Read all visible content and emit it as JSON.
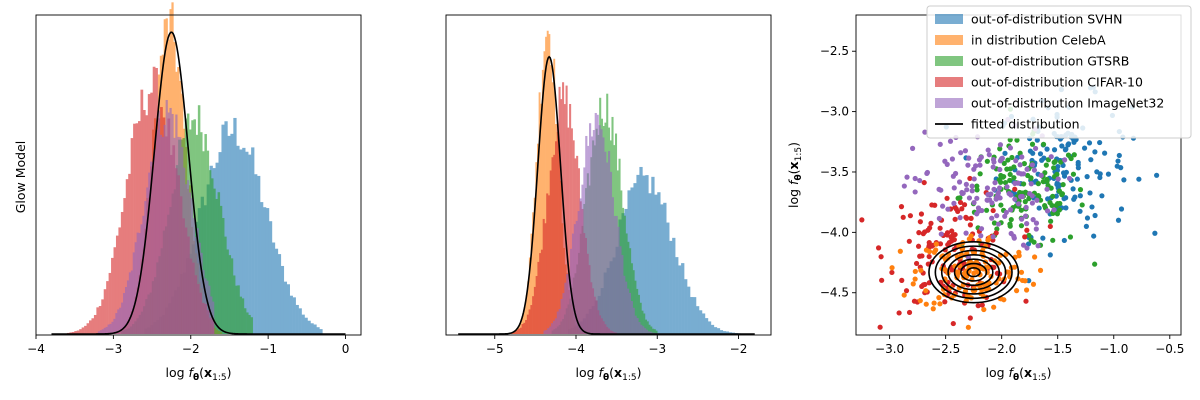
{
  "figure": {
    "row_label": "Glow Model"
  },
  "colors": {
    "svhn": "#1f77b4",
    "celeba": "#ff7f0e",
    "gtsrb": "#2ca02c",
    "cifar10": "#d62728",
    "imagenet32": "#9467bd",
    "fitted": "#000000"
  },
  "legend": [
    {
      "label": "out-of-distribution SVHN",
      "color_key": "svhn",
      "kind": "patch"
    },
    {
      "label": "in distribution CelebA",
      "color_key": "celeba",
      "kind": "patch"
    },
    {
      "label": "out-of-distribution GTSRB",
      "color_key": "gtsrb",
      "kind": "patch"
    },
    {
      "label": "out-of-distribution CIFAR-10",
      "color_key": "cifar10",
      "kind": "patch"
    },
    {
      "label": "out-of-distribution ImageNet32",
      "color_key": "imagenet32",
      "kind": "patch"
    },
    {
      "label": "fitted distribution",
      "color_key": "fitted",
      "kind": "line"
    }
  ],
  "chart_data": [
    {
      "type": "histogram",
      "xlabel": "log f_θ(x_{1:5})",
      "xlim": [
        -4.0,
        0.2
      ],
      "xticks": [
        "−4",
        "−3",
        "−2",
        "−1",
        "0"
      ],
      "xtick_values": [
        -4,
        -3,
        -2,
        -1,
        0
      ],
      "ylabel": "Glow Model",
      "yticks": [],
      "series": [
        {
          "name": "out-of-distribution SVHN",
          "color_key": "svhn",
          "mean": -1.45,
          "sd": 0.42,
          "peak_frac": 0.66,
          "range": [
            -2.6,
            -0.3
          ]
        },
        {
          "name": "in distribution CelebA",
          "color_key": "celeba",
          "mean": -2.28,
          "sd": 0.21,
          "peak_frac": 1.0,
          "range": [
            -3.1,
            -1.6
          ]
        },
        {
          "name": "out-of-distribution GTSRB",
          "color_key": "gtsrb",
          "mean": -1.95,
          "sd": 0.32,
          "peak_frac": 0.7,
          "range": [
            -2.9,
            -1.2
          ]
        },
        {
          "name": "out-of-distribution CIFAR-10",
          "color_key": "cifar10",
          "mean": -2.5,
          "sd": 0.33,
          "peak_frac": 0.8,
          "range": [
            -3.6,
            -1.7
          ]
        },
        {
          "name": "out-of-distribution ImageNet32",
          "color_key": "imagenet32",
          "mean": -2.3,
          "sd": 0.3,
          "peak_frac": 0.72,
          "range": [
            -3.2,
            -1.7
          ]
        }
      ],
      "fitted": {
        "name": "fitted distribution",
        "mean": -2.25,
        "sd": 0.22,
        "peak_frac": 0.98,
        "range": [
          -3.8,
          0.0
        ]
      }
    },
    {
      "type": "histogram",
      "xlabel": "log f_θ(x_{1:5})",
      "xlim": [
        -5.6,
        -1.6
      ],
      "xticks": [
        "−5",
        "−4",
        "−3",
        "−2"
      ],
      "xtick_values": [
        -5,
        -4,
        -3,
        -2
      ],
      "yticks": [],
      "series": [
        {
          "name": "out-of-distribution SVHN",
          "color_key": "svhn",
          "mean": -3.15,
          "sd": 0.35,
          "peak_frac": 0.5,
          "range": [
            -4.1,
            -1.9
          ]
        },
        {
          "name": "in distribution CelebA",
          "color_key": "celeba",
          "mean": -4.35,
          "sd": 0.13,
          "peak_frac": 1.0,
          "range": [
            -5.0,
            -3.8
          ]
        },
        {
          "name": "out-of-distribution GTSRB",
          "color_key": "gtsrb",
          "mean": -3.65,
          "sd": 0.22,
          "peak_frac": 0.74,
          "range": [
            -4.3,
            -3.0
          ]
        },
        {
          "name": "out-of-distribution CIFAR-10",
          "color_key": "cifar10",
          "mean": -4.15,
          "sd": 0.2,
          "peak_frac": 0.76,
          "range": [
            -4.8,
            -3.5
          ]
        },
        {
          "name": "out-of-distribution ImageNet32",
          "color_key": "imagenet32",
          "mean": -3.75,
          "sd": 0.22,
          "peak_frac": 0.7,
          "range": [
            -4.4,
            -3.0
          ]
        }
      ],
      "fitted": {
        "name": "fitted distribution",
        "mean": -4.33,
        "sd": 0.14,
        "peak_frac": 0.9,
        "range": [
          -5.45,
          -1.8
        ]
      }
    },
    {
      "type": "scatter",
      "xlabel": "log f_θ(x_{1:5})",
      "ylabel": "log f_θ(x_{1:5})",
      "xlim": [
        -3.3,
        -0.4
      ],
      "ylim": [
        -4.85,
        -2.2
      ],
      "xticks": [
        "−3.0",
        "−2.5",
        "−2.0",
        "−1.5",
        "−1.0",
        "−0.5"
      ],
      "xtick_values": [
        -3.0,
        -2.5,
        -2.0,
        -1.5,
        -1.0,
        -0.5
      ],
      "yticks": [
        "−2.5",
        "−3.0",
        "−3.5",
        "−4.0",
        "−4.5"
      ],
      "ytick_values": [
        -2.5,
        -3.0,
        -3.5,
        -4.0,
        -4.5
      ],
      "legend_position": "upper right",
      "series": [
        {
          "name": "out-of-distribution SVHN",
          "color_key": "svhn",
          "center": [
            -1.45,
            -3.45
          ],
          "spread": [
            0.3,
            0.28
          ],
          "n": 150
        },
        {
          "name": "out-of-distribution GTSRB",
          "color_key": "gtsrb",
          "center": [
            -1.8,
            -3.7
          ],
          "spread": [
            0.28,
            0.22
          ],
          "n": 140
        },
        {
          "name": "out-of-distribution CIFAR-10",
          "color_key": "cifar10",
          "center": [
            -2.45,
            -4.15
          ],
          "spread": [
            0.28,
            0.25
          ],
          "n": 140
        },
        {
          "name": "in distribution CelebA",
          "color_key": "celeba",
          "center": [
            -2.25,
            -4.33
          ],
          "spread": [
            0.25,
            0.16
          ],
          "n": 150
        },
        {
          "name": "out-of-distribution ImageNet32",
          "color_key": "imagenet32",
          "center": [
            -2.15,
            -3.65
          ],
          "spread": [
            0.32,
            0.25
          ],
          "n": 140
        }
      ],
      "fitted_contour": {
        "name": "fitted distribution",
        "center": [
          -2.25,
          -4.33
        ],
        "sd": [
          0.19,
          0.12
        ],
        "levels": 7
      }
    }
  ]
}
